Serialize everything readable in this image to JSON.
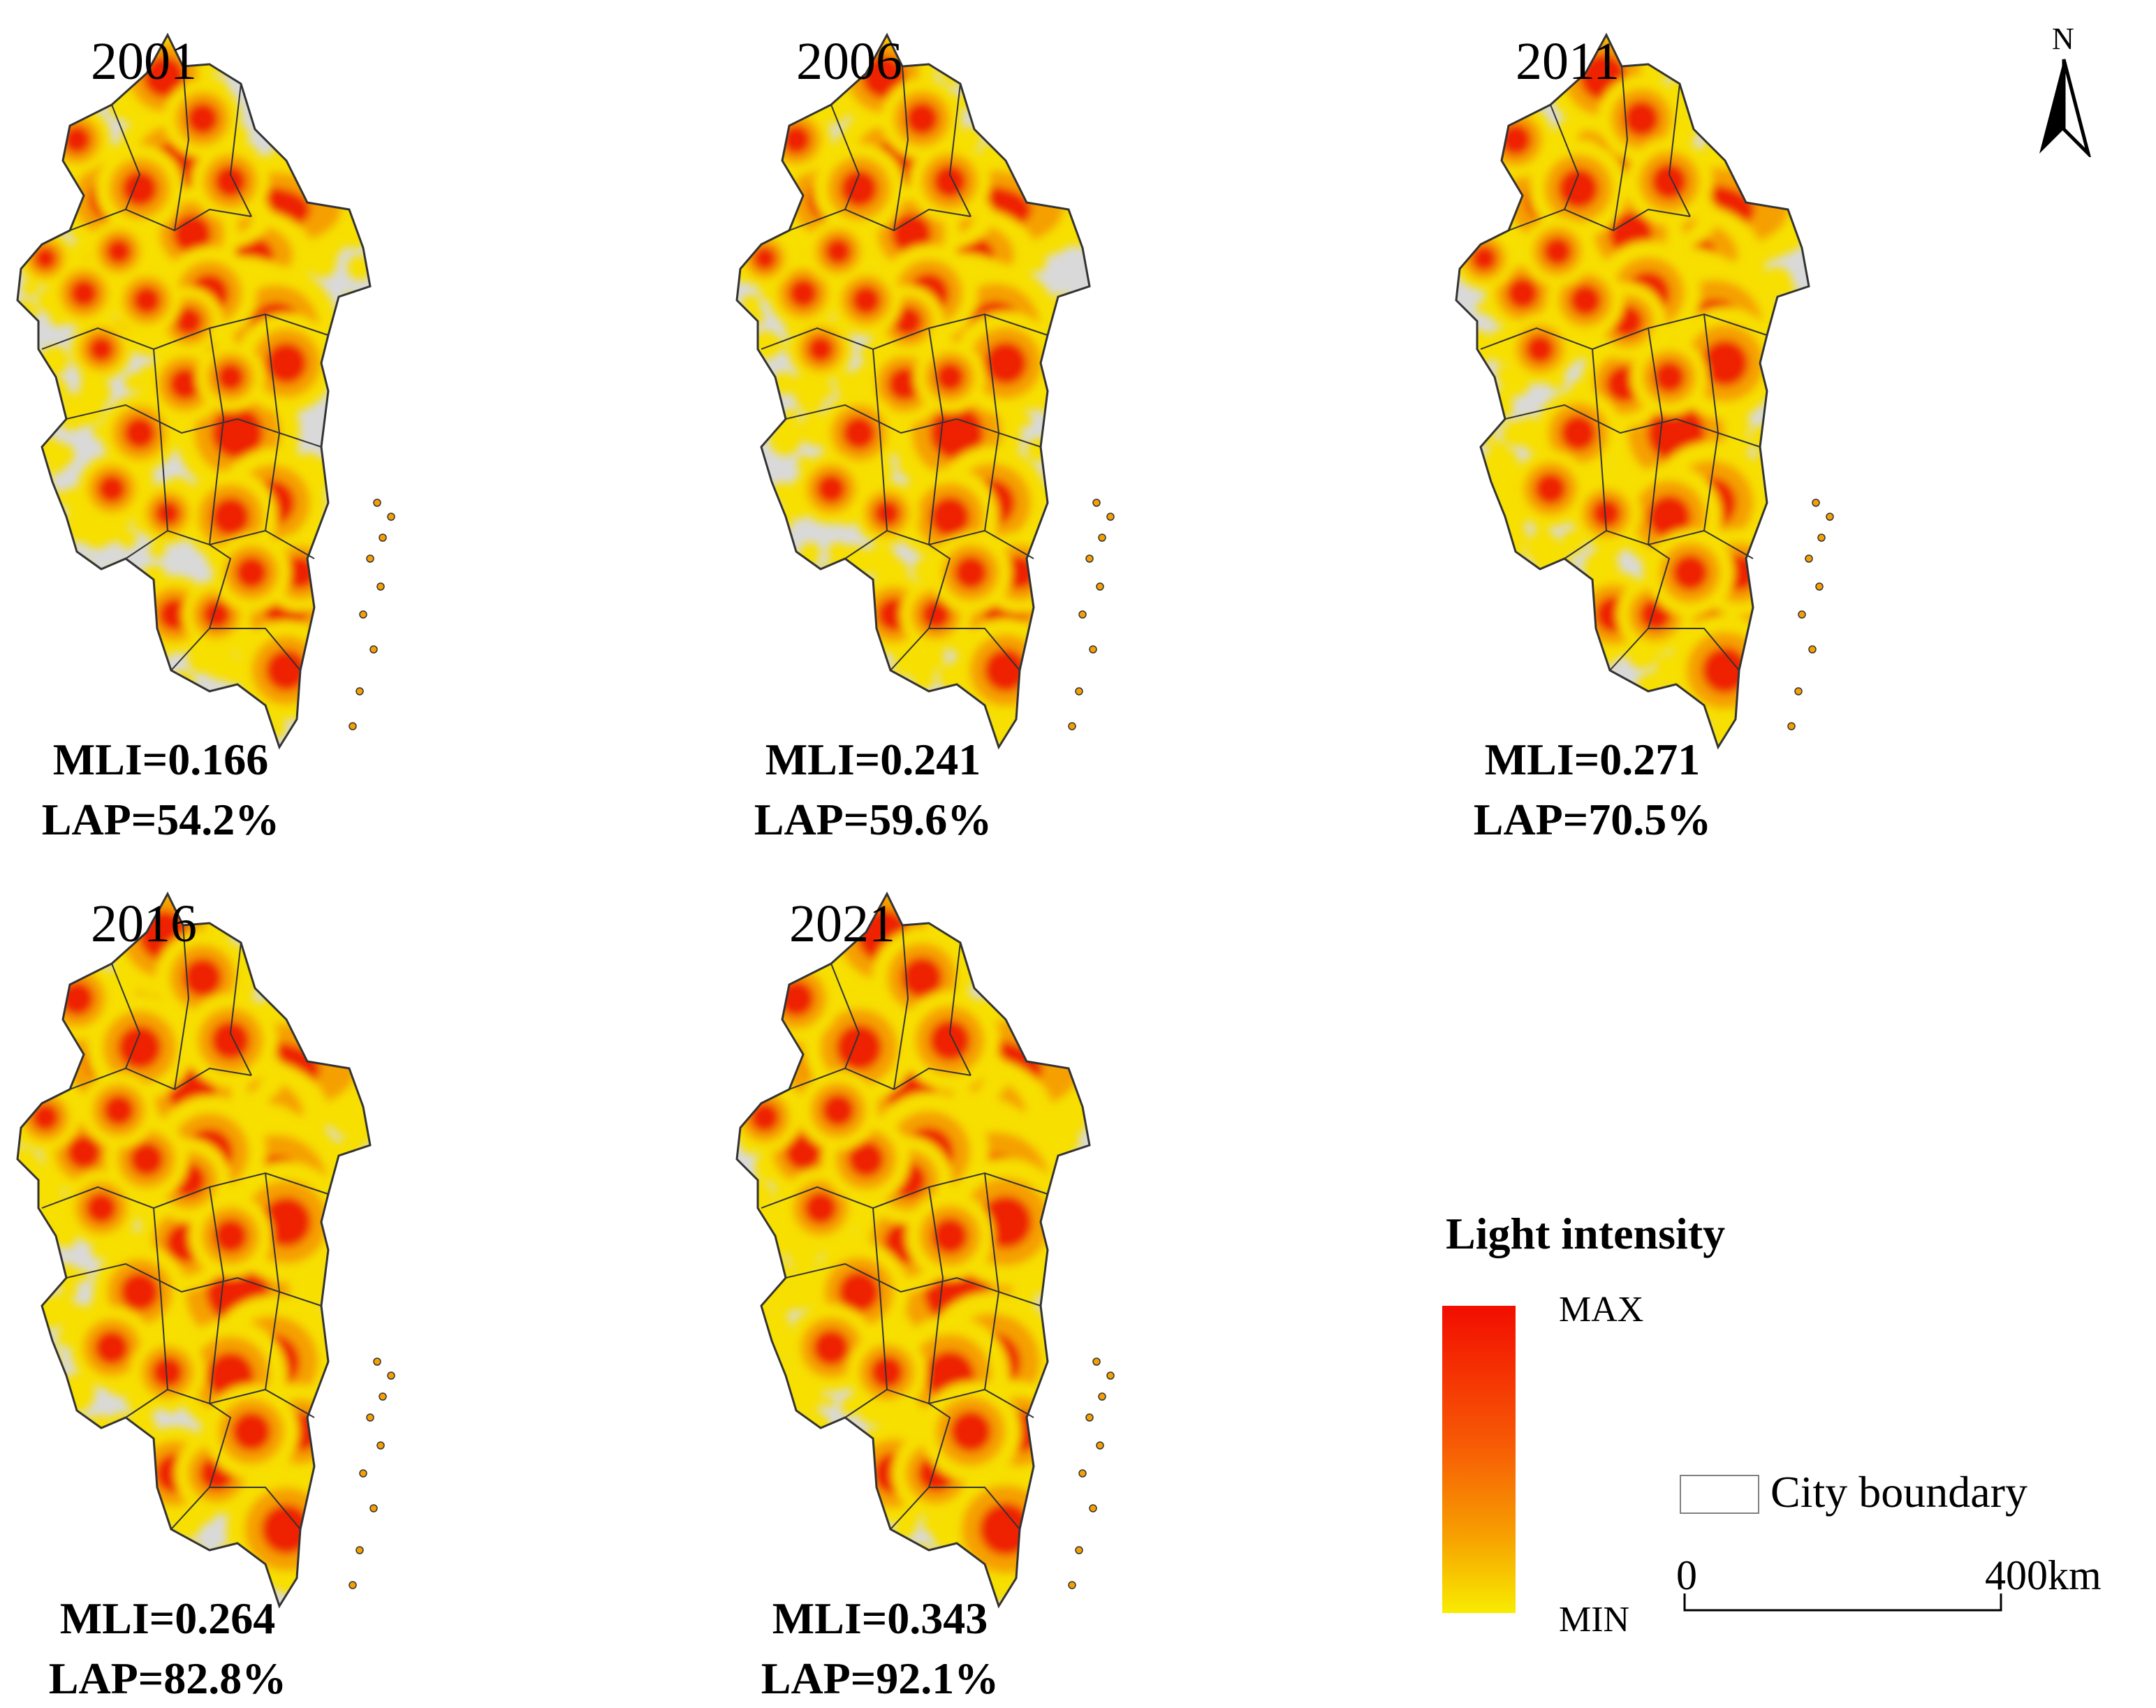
{
  "panels": [
    {
      "year": "2001",
      "mli": "MLI=0.166",
      "lap": "LAP=54.2%",
      "coverage": 0.542
    },
    {
      "year": "2006",
      "mli": "MLI=0.241",
      "lap": "LAP=59.6%",
      "coverage": 0.596
    },
    {
      "year": "2011",
      "mli": "MLI=0.271",
      "lap": "LAP=70.5%",
      "coverage": 0.705
    },
    {
      "year": "2016",
      "mli": "MLI=0.264",
      "lap": "LAP=82.8%",
      "coverage": 0.828
    },
    {
      "year": "2021",
      "mli": "MLI=0.343",
      "lap": "LAP=92.1%",
      "coverage": 0.921
    }
  ],
  "legend": {
    "title": "Light intensity",
    "max_label": "MAX",
    "min_label": "MIN",
    "colors": {
      "max": "#f20d00",
      "mid": "#f75a05",
      "min": "#f8ec00"
    },
    "boundary_label": "City boundary"
  },
  "scale_bar": {
    "start_label": "0",
    "end_label": "400km"
  },
  "north_arrow": {
    "label": "N"
  },
  "colors": {
    "no_light": "#d9d9d9",
    "low": "#f7df00",
    "mid": "#f5a000",
    "high": "#ee2000",
    "boundary": "#333333"
  }
}
